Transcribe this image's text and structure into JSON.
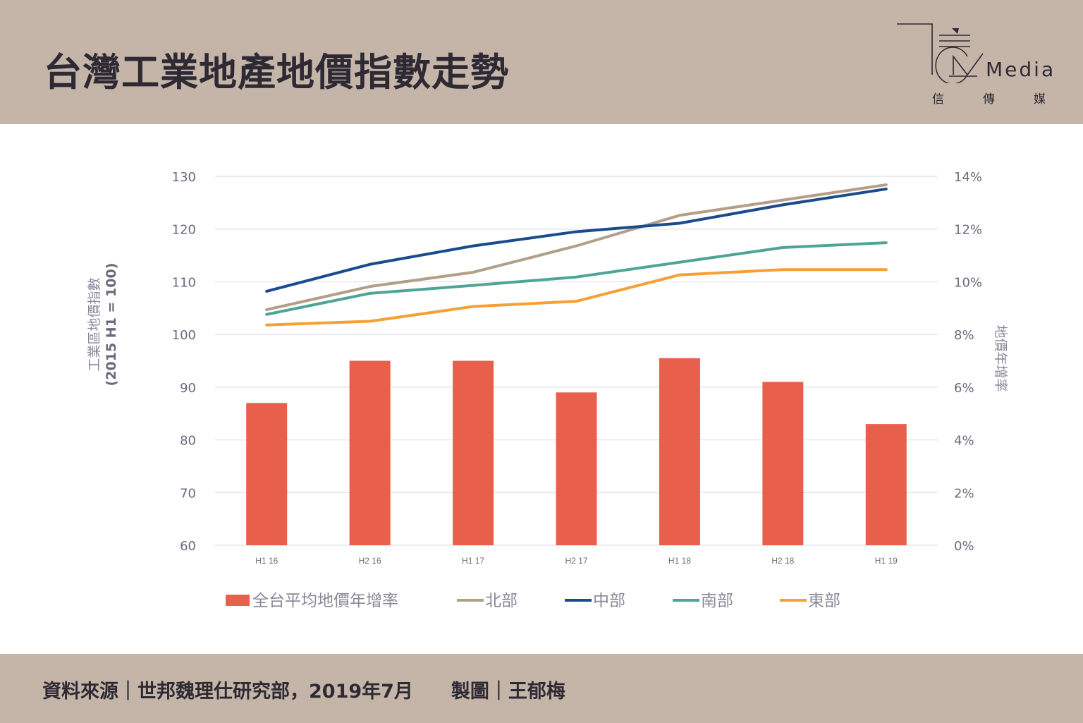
{
  "header": {
    "title": "台灣工業地產地價指數走勢",
    "logo_text": "Media",
    "logo_sub": [
      "信",
      "傳",
      "媒"
    ]
  },
  "footer": {
    "text": "資料來源｜世邦魏理仕研究部，2019年7月　　製圖｜王郁梅"
  },
  "colors": {
    "header_bg": "#c4b5a8",
    "bar": "#e85f4c",
    "north": "#b39e89",
    "central": "#1a4b8c",
    "south": "#4fa595",
    "east": "#f6a033",
    "grid": "#e6e6ee"
  },
  "chart_data": {
    "type": "bar+line",
    "title": "台灣工業地產地價指數走勢",
    "categories": [
      "H1 16",
      "H2 16",
      "H1 17",
      "H2 17",
      "H1 18",
      "H2 18",
      "H1 19"
    ],
    "y_left": {
      "label": "工業區地價指數",
      "sublabel": "(2015 H1 = 100)",
      "range": [
        60,
        130
      ],
      "ticks": [
        60,
        70,
        80,
        90,
        100,
        110,
        120,
        130
      ]
    },
    "y_right": {
      "label": "地價年增率",
      "range": [
        0,
        14
      ],
      "ticks": [
        "0%",
        "2%",
        "4%",
        "6%",
        "8%",
        "10%",
        "12%",
        "14%"
      ],
      "tick_values": [
        0,
        2,
        4,
        6,
        8,
        10,
        12,
        14
      ]
    },
    "grid": true,
    "legend_position": "bottom",
    "bars": {
      "name": "全台平均地價年增率",
      "axis": "right",
      "unit": "%",
      "values": [
        5.4,
        7.0,
        7.0,
        5.8,
        7.1,
        6.2,
        4.6
      ]
    },
    "series": [
      {
        "key": "north",
        "name": "北部",
        "axis": "left",
        "values": [
          104.7,
          109.1,
          111.8,
          116.8,
          122.6,
          125.5,
          128.4
        ]
      },
      {
        "key": "central",
        "name": "中部",
        "axis": "left",
        "values": [
          108.2,
          113.3,
          116.8,
          119.5,
          121.1,
          124.6,
          127.6
        ]
      },
      {
        "key": "south",
        "name": "南部",
        "axis": "left",
        "values": [
          103.8,
          107.8,
          109.3,
          110.9,
          113.7,
          116.5,
          117.4
        ]
      },
      {
        "key": "east",
        "name": "東部",
        "axis": "left",
        "values": [
          101.8,
          102.5,
          105.3,
          106.3,
          111.3,
          112.3,
          112.3
        ]
      }
    ]
  }
}
